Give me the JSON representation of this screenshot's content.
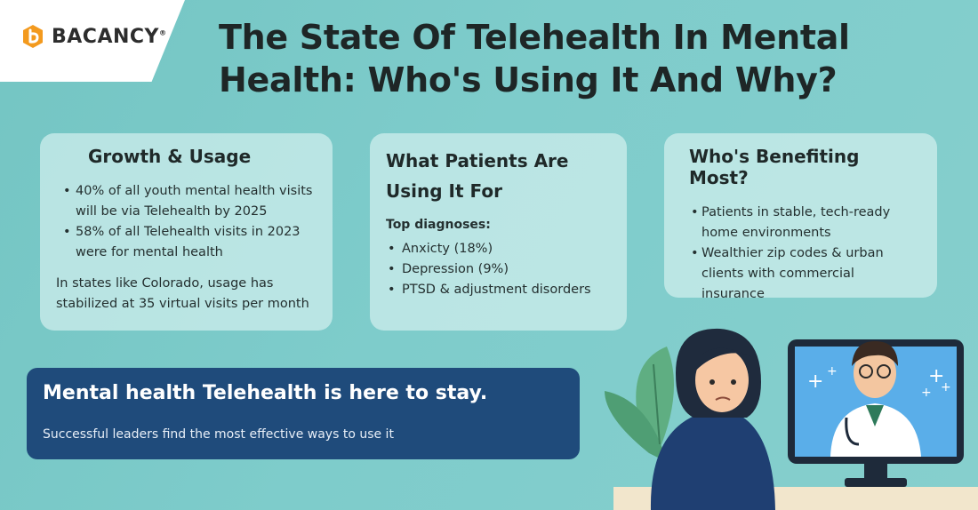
{
  "brand": {
    "name": "BACANCY",
    "mark": "®",
    "accent": "#f39a1e"
  },
  "title": "The State Of Telehealth In Mental Health: Who's Using It And Why?",
  "cards": [
    {
      "heading": "Growth & Usage",
      "bullets": [
        "40% of all youth mental health visits will be via Telehealth by 2025",
        "58% of all Telehealth visits in 2023 were for mental health"
      ],
      "note": "In states like Colorado, usage has stabilized at 35 virtual visits per month"
    },
    {
      "heading": "What Patients Are Using It For",
      "subheading": "Top diagnoses:",
      "bullets": [
        " Anxicty (18%)",
        "Depression (9%)",
        "PTSD & adjustment disorders"
      ]
    },
    {
      "heading": "Who's Benefiting Most?",
      "bullets": [
        "Patients in stable, tech-ready home environments",
        "Wealthier zip codes & urban clients with commercial insurance"
      ]
    }
  ],
  "banner": {
    "headline": "Mental health Telehealth is here to stay.",
    "subtext": "Successful leaders find the most effective ways to use it",
    "color": "#1f4b7b"
  },
  "illustration": {
    "icons": [
      "patient-figure-icon",
      "doctor-monitor-icon",
      "plant-leaves-icon"
    ]
  }
}
